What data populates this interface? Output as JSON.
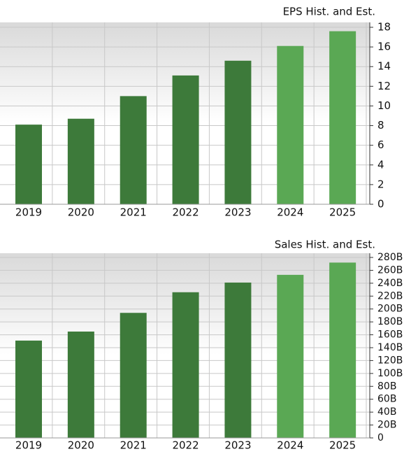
{
  "chart_data": [
    {
      "type": "bar",
      "title": "EPS Hist. and Est.",
      "categories": [
        "2019",
        "2020",
        "2021",
        "2022",
        "2023",
        "2024",
        "2025"
      ],
      "values": [
        8.1,
        8.7,
        11.0,
        13.1,
        14.6,
        16.1,
        17.6
      ],
      "colors": [
        "#3d7a3a",
        "#3d7a3a",
        "#3d7a3a",
        "#3d7a3a",
        "#3d7a3a",
        "#5aa854",
        "#5aa854"
      ],
      "ylim": [
        0,
        18
      ],
      "yticks": [
        0,
        2,
        4,
        6,
        8,
        10,
        12,
        14,
        16,
        18
      ],
      "grid": true
    },
    {
      "type": "bar",
      "title": "Sales Hist. and Est.",
      "categories": [
        "2019",
        "2020",
        "2021",
        "2022",
        "2023",
        "2024",
        "2025"
      ],
      "values": [
        151,
        165,
        194,
        226,
        241,
        253,
        272
      ],
      "colors": [
        "#3d7a3a",
        "#3d7a3a",
        "#3d7a3a",
        "#3d7a3a",
        "#3d7a3a",
        "#5aa854",
        "#5aa854"
      ],
      "ylim": [
        0,
        280
      ],
      "yticks": [
        0,
        {
          "value": 20,
          "label": "20B"
        },
        {
          "value": 40,
          "label": "40B"
        },
        {
          "value": 60,
          "label": "60B"
        },
        {
          "value": 80,
          "label": "80B"
        },
        {
          "value": 100,
          "label": "100B"
        },
        {
          "value": 120,
          "label": "120B"
        },
        {
          "value": 140,
          "label": "140B"
        },
        {
          "value": 160,
          "label": "160B"
        },
        {
          "value": 180,
          "label": "180B"
        },
        {
          "value": 200,
          "label": "200B"
        },
        {
          "value": 220,
          "label": "220B"
        },
        {
          "value": 240,
          "label": "240B"
        },
        {
          "value": 260,
          "label": "260B"
        },
        {
          "value": 280,
          "label": "280B"
        }
      ],
      "grid": true
    }
  ]
}
